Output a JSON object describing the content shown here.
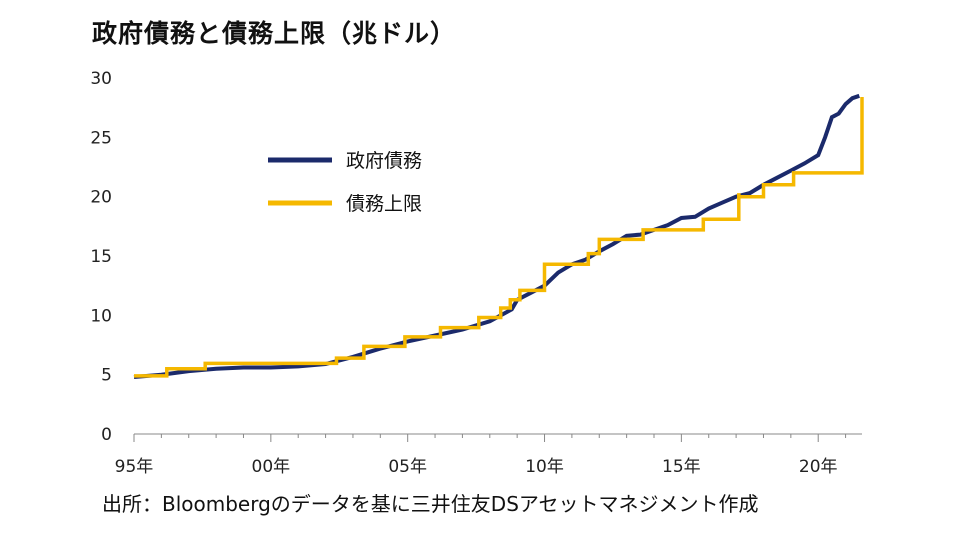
{
  "chart_data": {
    "type": "line",
    "title": "政府債務と債務上限（兆ドル）",
    "source": "出所：Bloombergのデータを基に三井住友DSアセットマネジメント作成",
    "ylim": [
      0,
      30
    ],
    "xlim": [
      1995,
      2021.6
    ],
    "y_ticks": [
      "0",
      "5",
      "10",
      "15",
      "20",
      "25",
      "30"
    ],
    "x_ticks": [
      {
        "x": 1995,
        "label": "95年"
      },
      {
        "x": 2000,
        "label": "00年"
      },
      {
        "x": 2005,
        "label": "05年"
      },
      {
        "x": 2010,
        "label": "10年"
      },
      {
        "x": 2015,
        "label": "15年"
      },
      {
        "x": 2020,
        "label": "20年"
      }
    ],
    "grid": false,
    "legend_position": "upper-left",
    "series": [
      {
        "name": "政府債務",
        "color": "#1b2a6b",
        "points": [
          [
            1995.0,
            4.8
          ],
          [
            1996.0,
            5.0
          ],
          [
            1997.0,
            5.3
          ],
          [
            1998.0,
            5.5
          ],
          [
            1999.0,
            5.6
          ],
          [
            2000.0,
            5.6
          ],
          [
            2001.0,
            5.7
          ],
          [
            2002.0,
            5.9
          ],
          [
            2003.0,
            6.5
          ],
          [
            2004.0,
            7.2
          ],
          [
            2005.0,
            7.8
          ],
          [
            2006.0,
            8.3
          ],
          [
            2007.0,
            8.8
          ],
          [
            2008.0,
            9.5
          ],
          [
            2008.8,
            10.5
          ],
          [
            2009.0,
            11.3
          ],
          [
            2009.5,
            11.9
          ],
          [
            2010.0,
            12.5
          ],
          [
            2010.5,
            13.6
          ],
          [
            2011.0,
            14.3
          ],
          [
            2011.5,
            14.7
          ],
          [
            2012.0,
            15.4
          ],
          [
            2012.5,
            16.0
          ],
          [
            2013.0,
            16.7
          ],
          [
            2013.5,
            16.8
          ],
          [
            2014.0,
            17.2
          ],
          [
            2014.5,
            17.6
          ],
          [
            2015.0,
            18.2
          ],
          [
            2015.5,
            18.3
          ],
          [
            2016.0,
            19.0
          ],
          [
            2016.5,
            19.5
          ],
          [
            2017.0,
            20.0
          ],
          [
            2017.5,
            20.3
          ],
          [
            2018.0,
            21.0
          ],
          [
            2018.5,
            21.6
          ],
          [
            2019.0,
            22.2
          ],
          [
            2019.5,
            22.8
          ],
          [
            2020.0,
            23.5
          ],
          [
            2020.25,
            25.0
          ],
          [
            2020.5,
            26.7
          ],
          [
            2020.75,
            27.0
          ],
          [
            2021.0,
            27.8
          ],
          [
            2021.25,
            28.3
          ],
          [
            2021.5,
            28.5
          ]
        ]
      },
      {
        "name": "債務上限",
        "color": "#f5b800",
        "points": [
          [
            1995.0,
            4.9
          ],
          [
            1996.2,
            4.9
          ],
          [
            1996.2,
            5.5
          ],
          [
            1997.6,
            5.5
          ],
          [
            1997.6,
            5.95
          ],
          [
            2002.4,
            5.95
          ],
          [
            2002.4,
            6.4
          ],
          [
            2003.4,
            6.4
          ],
          [
            2003.4,
            7.38
          ],
          [
            2004.9,
            7.38
          ],
          [
            2004.9,
            8.18
          ],
          [
            2006.2,
            8.18
          ],
          [
            2006.2,
            8.97
          ],
          [
            2007.6,
            8.97
          ],
          [
            2007.6,
            9.82
          ],
          [
            2008.4,
            9.82
          ],
          [
            2008.4,
            10.62
          ],
          [
            2008.75,
            10.62
          ],
          [
            2008.75,
            11.32
          ],
          [
            2009.1,
            11.32
          ],
          [
            2009.1,
            12.1
          ],
          [
            2010.0,
            12.1
          ],
          [
            2010.0,
            14.3
          ],
          [
            2011.6,
            14.3
          ],
          [
            2011.6,
            15.2
          ],
          [
            2012.0,
            15.2
          ],
          [
            2012.0,
            16.4
          ],
          [
            2013.6,
            16.4
          ],
          [
            2013.6,
            17.2
          ],
          [
            2015.8,
            17.2
          ],
          [
            2015.8,
            18.1
          ],
          [
            2017.1,
            18.1
          ],
          [
            2017.1,
            20.3
          ],
          [
            2017.1,
            20.0
          ],
          [
            2018.0,
            20.0
          ],
          [
            2018.0,
            21.0
          ],
          [
            2019.1,
            21.0
          ],
          [
            2019.1,
            22.0
          ],
          [
            2021.6,
            22.0
          ],
          [
            2021.6,
            28.4
          ]
        ]
      }
    ]
  }
}
